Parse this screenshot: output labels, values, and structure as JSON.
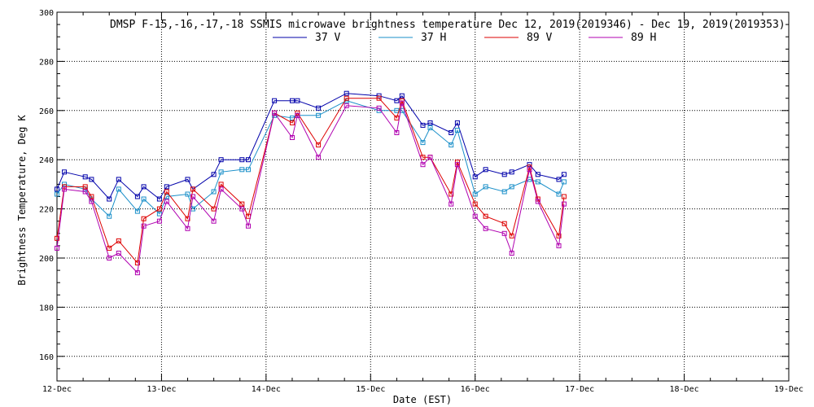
{
  "chart_data": {
    "type": "line",
    "title": "DMSP F-15,-16,-17,-18 SSMIS microwave brightness temperature Dec 12, 2019(2019346) - Dec 19, 2019(2019353)",
    "xlabel": "Date (EST)",
    "ylabel": "Brightness Temperature, Deg K",
    "xlim": [
      0,
      7
    ],
    "ylim": [
      150,
      300
    ],
    "yticks": [
      160,
      180,
      200,
      220,
      240,
      260,
      280,
      300
    ],
    "xticks": [
      {
        "value": 0,
        "label": "12-Dec"
      },
      {
        "value": 1,
        "label": "13-Dec"
      },
      {
        "value": 2,
        "label": "14-Dec"
      },
      {
        "value": 3,
        "label": "15-Dec"
      },
      {
        "value": 4,
        "label": "16-Dec"
      },
      {
        "value": 5,
        "label": "17-Dec"
      },
      {
        "value": 6,
        "label": "18-Dec"
      },
      {
        "value": 7,
        "label": "19-Dec"
      }
    ],
    "grid": true,
    "legend_position": "top-center",
    "series": [
      {
        "name": "37 V",
        "color": "#0000aa",
        "x": [
          0.0,
          0.07,
          0.27,
          0.33,
          0.5,
          0.59,
          0.77,
          0.83,
          0.98,
          1.05,
          1.25,
          1.3,
          1.5,
          1.57,
          1.77,
          1.83,
          2.08,
          2.25,
          2.3,
          2.5,
          2.77,
          3.08,
          3.25,
          3.3,
          3.5,
          3.57,
          3.77,
          3.83,
          4.0,
          4.1,
          4.28,
          4.35,
          4.52,
          4.6,
          4.8,
          4.85
        ],
        "y": [
          228,
          235,
          233,
          232,
          224,
          232,
          225,
          229,
          224,
          229,
          232,
          228,
          234,
          240,
          240,
          240,
          264,
          264,
          264,
          261,
          267,
          266,
          264,
          266,
          254,
          255,
          251,
          255,
          233,
          236,
          234,
          235,
          238,
          234,
          232,
          234
        ]
      },
      {
        "name": "37 H",
        "color": "#1a8fc9",
        "x": [
          0.0,
          0.07,
          0.27,
          0.33,
          0.5,
          0.59,
          0.77,
          0.83,
          0.98,
          1.05,
          1.25,
          1.3,
          1.5,
          1.57,
          1.77,
          1.83,
          2.08,
          2.25,
          2.3,
          2.5,
          2.77,
          3.08,
          3.25,
          3.3,
          3.5,
          3.57,
          3.77,
          3.83,
          4.0,
          4.1,
          4.28,
          4.35,
          4.52,
          4.6,
          4.8,
          4.85
        ],
        "y": [
          226,
          230,
          228,
          224,
          217,
          228,
          219,
          224,
          218,
          225,
          226,
          220,
          227,
          235,
          236,
          236,
          258,
          257,
          258,
          258,
          264,
          260,
          260,
          260,
          247,
          253,
          246,
          252,
          226,
          229,
          227,
          229,
          232,
          231,
          226,
          231
        ]
      },
      {
        "name": "89 V",
        "color": "#dd0000",
        "x": [
          0.0,
          0.07,
          0.27,
          0.33,
          0.5,
          0.59,
          0.77,
          0.83,
          0.98,
          1.05,
          1.25,
          1.3,
          1.5,
          1.57,
          1.77,
          1.83,
          2.08,
          2.25,
          2.3,
          2.5,
          2.77,
          3.08,
          3.25,
          3.3,
          3.5,
          3.57,
          3.77,
          3.83,
          4.0,
          4.1,
          4.28,
          4.35,
          4.52,
          4.6,
          4.8,
          4.85
        ],
        "y": [
          208,
          229,
          229,
          225,
          204,
          207,
          198,
          216,
          220,
          227,
          216,
          228,
          220,
          230,
          222,
          217,
          259,
          255,
          259,
          246,
          265,
          265,
          257,
          264,
          241,
          241,
          226,
          239,
          222,
          217,
          214,
          209,
          237,
          224,
          209,
          225
        ]
      },
      {
        "name": "89 H",
        "color": "#b000b0",
        "x": [
          0.0,
          0.07,
          0.27,
          0.33,
          0.5,
          0.59,
          0.77,
          0.83,
          0.98,
          1.05,
          1.25,
          1.3,
          1.5,
          1.57,
          1.77,
          1.83,
          2.08,
          2.25,
          2.3,
          2.5,
          2.77,
          3.08,
          3.25,
          3.3,
          3.5,
          3.57,
          3.77,
          3.83,
          4.0,
          4.1,
          4.28,
          4.35,
          4.52,
          4.6,
          4.8,
          4.85
        ],
        "y": [
          204,
          228,
          227,
          223,
          200,
          202,
          194,
          213,
          215,
          223,
          212,
          225,
          215,
          228,
          220,
          213,
          259,
          249,
          258,
          241,
          262,
          261,
          251,
          263,
          238,
          241,
          222,
          238,
          217,
          212,
          210,
          202,
          236,
          223,
          205,
          222
        ]
      }
    ]
  }
}
